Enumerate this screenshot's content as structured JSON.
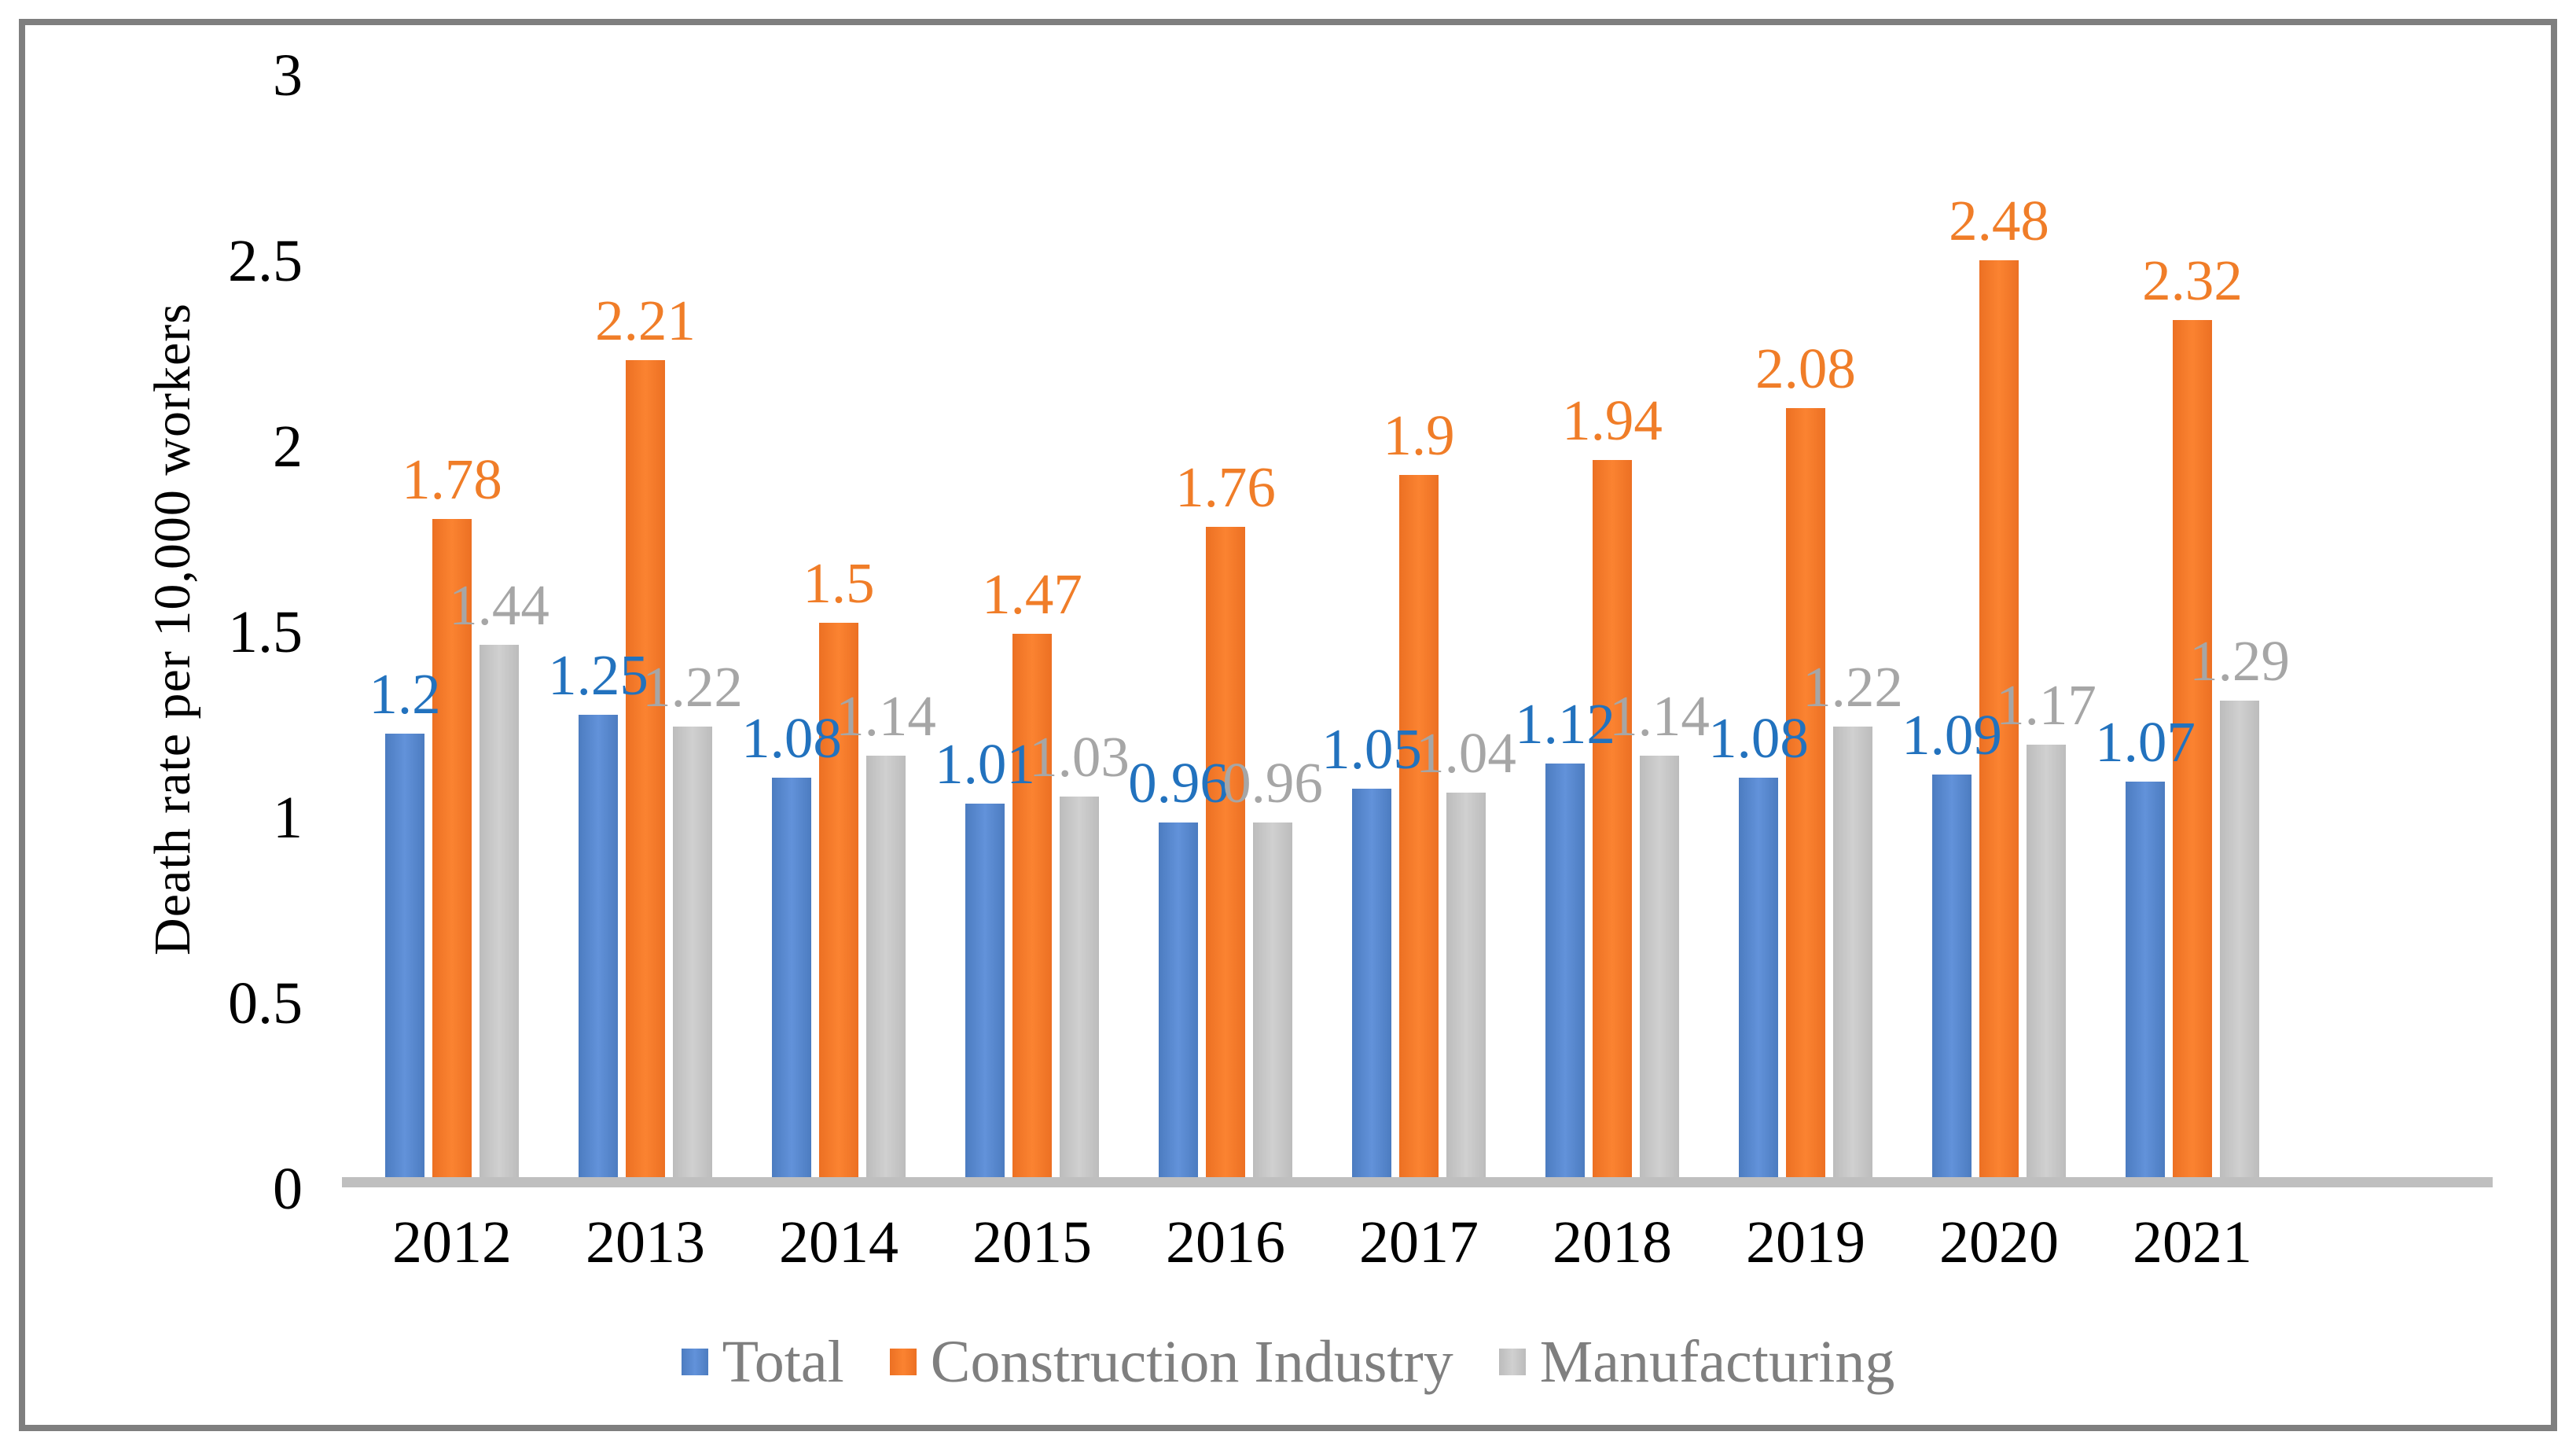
{
  "figure": {
    "background_color": "#FFFFFF",
    "border_color": "#7F7F7F",
    "baseline_color": "#BFBFBF",
    "axis_text_color": "#000000",
    "legend_text_color": "#7F7F7F"
  },
  "chart_data": {
    "type": "bar",
    "title": "",
    "xlabel": "",
    "ylabel": "Death rate per 10,000 workers",
    "ylim": [
      0,
      3
    ],
    "ytick_interval": 0.5,
    "yticks": [
      {
        "label": "3",
        "value": 3
      },
      {
        "label": "2.5",
        "value": 2.5
      },
      {
        "label": "2",
        "value": 2
      },
      {
        "label": "1.5",
        "value": 1.5
      },
      {
        "label": "1",
        "value": 1
      },
      {
        "label": "0.5",
        "value": 0.5
      },
      {
        "label": "0",
        "value": 0
      }
    ],
    "grid": false,
    "legend_position": "bottom",
    "categories": [
      "2012",
      "2013",
      "2014",
      "2015",
      "2016",
      "2017",
      "2018",
      "2019",
      "2020",
      "2021"
    ],
    "series": [
      {
        "name": "Total",
        "color": "#4C7CC0",
        "color_light": "#6292DA",
        "label_color": "#2272BE",
        "values": [
          1.2,
          1.25,
          1.08,
          1.01,
          0.96,
          1.05,
          1.12,
          1.08,
          1.09,
          1.07
        ],
        "labels": [
          "1.2",
          "1.25",
          "1.08",
          "1.01",
          "0.96",
          "1.05",
          "1.12",
          "1.08",
          "1.09",
          "1.07"
        ]
      },
      {
        "name": "Construction Industry",
        "color": "#EC7023",
        "color_light": "#FB8331",
        "label_color": "#F07D28",
        "values": [
          1.78,
          2.21,
          1.5,
          1.47,
          1.76,
          1.9,
          1.94,
          2.08,
          2.48,
          2.32
        ],
        "labels": [
          "1.78",
          "2.21",
          "1.5",
          "1.47",
          "1.76",
          "1.9",
          "1.94",
          "2.08",
          "2.48",
          "2.32"
        ]
      },
      {
        "name": "Manufacturing",
        "color": "#BCBCBC",
        "color_light": "#D0D0D0",
        "label_color": "#A6A6A6",
        "values": [
          1.44,
          1.22,
          1.14,
          1.03,
          0.96,
          1.04,
          1.14,
          1.22,
          1.17,
          1.29
        ],
        "labels": [
          "1.44",
          "1.22",
          "1.14",
          "1.03",
          "0.96",
          "1.04",
          "1.14",
          "1.22",
          "1.17",
          "1.29"
        ]
      }
    ]
  }
}
